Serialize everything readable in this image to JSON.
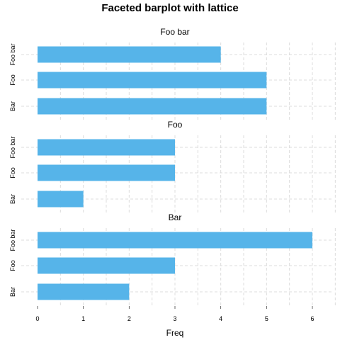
{
  "chart_data": {
    "type": "bar",
    "orientation": "horizontal",
    "title": "Faceted barplot with lattice",
    "xlabel": "Freq",
    "ylabel": "",
    "xlim": [
      0,
      6.5
    ],
    "x_ticks": [
      "0",
      "1",
      "2",
      "3",
      "4",
      "5",
      "6"
    ],
    "grid": true,
    "bar_color": "#56B4E9",
    "panels": [
      {
        "title": "Foo bar",
        "categories": [
          "Foo bar",
          "Foo",
          "Bar"
        ],
        "values": [
          4,
          5,
          5
        ]
      },
      {
        "title": "Foo",
        "categories": [
          "Foo bar",
          "Foo",
          "Bar"
        ],
        "values": [
          3,
          3,
          1
        ]
      },
      {
        "title": "Bar",
        "categories": [
          "Foo bar",
          "Foo",
          "Bar"
        ],
        "values": [
          6,
          3,
          2
        ]
      }
    ]
  }
}
